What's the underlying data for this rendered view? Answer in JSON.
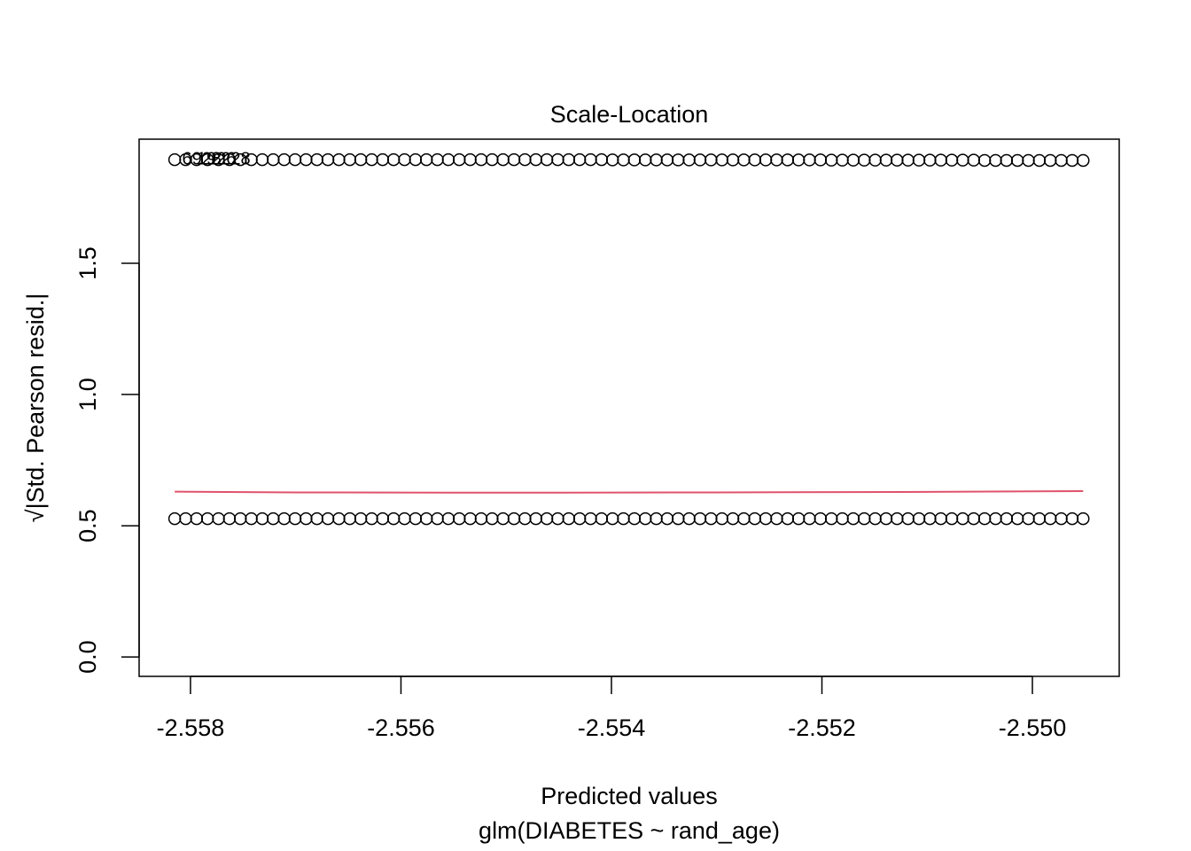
{
  "chart_data": {
    "type": "scatter",
    "title": "Scale-Location",
    "xlabel": "Predicted values",
    "subtitle": "glm(DIABETES ~ rand_age)",
    "ylabel": "√|Std. Pearson resid.|",
    "xlim": [
      -2.558488,
      -2.549175
    ],
    "ylim": [
      -0.074,
      1.973
    ],
    "xticks": [
      -2.558,
      -2.556,
      -2.554,
      -2.552,
      {
        "value": -2.55,
        "label": "-2.550"
      }
    ],
    "yticks": [
      {
        "value": 0,
        "label": "0.0"
      },
      0.5,
      {
        "value": 1,
        "label": "1.0"
      },
      1.5
    ],
    "x": [
      -2.55815,
      -2.558046,
      -2.557942,
      -2.557838,
      -2.557734,
      -2.55763,
      -2.557526,
      -2.557422,
      -2.557318,
      -2.557214,
      -2.55711,
      -2.557006,
      -2.556902,
      -2.556798,
      -2.556694,
      -2.55659,
      -2.556486,
      -2.556382,
      -2.556278,
      -2.556174,
      -2.55607,
      -2.555966,
      -2.555862,
      -2.555758,
      -2.555654,
      -2.55555,
      -2.555446,
      -2.555342,
      -2.555238,
      -2.555134,
      -2.55503,
      -2.554926,
      -2.554822,
      -2.554718,
      -2.554614,
      -2.55451,
      -2.554406,
      -2.554302,
      -2.554198,
      -2.554094,
      -2.55399,
      -2.553886,
      -2.553782,
      -2.553678,
      -2.553574,
      -2.55347,
      -2.553366,
      -2.553262,
      -2.553158,
      -2.553054,
      -2.55295,
      -2.552846,
      -2.552742,
      -2.552638,
      -2.552534,
      -2.55243,
      -2.552326,
      -2.552222,
      -2.552118,
      -2.552014,
      -2.55191,
      -2.551806,
      -2.551702,
      -2.551598,
      -2.551494,
      -2.55139,
      -2.551286,
      -2.551182,
      -2.551078,
      -2.550974,
      -2.55087,
      -2.550766,
      -2.550662,
      -2.550558,
      -2.550454,
      -2.55035,
      -2.550246,
      -2.550142,
      -2.550038,
      -2.549934,
      -2.54983,
      -2.549726,
      -2.549622,
      -2.549518
    ],
    "series": [
      {
        "color": "#000000",
        "values": [
          1.895,
          1.895,
          1.895,
          1.895,
          1.895,
          1.895,
          1.895,
          1.895,
          1.895,
          1.895,
          1.895,
          1.895,
          1.895,
          1.895,
          1.895,
          1.895,
          1.895,
          1.895,
          1.895,
          1.895,
          1.895,
          1.895,
          1.895,
          1.895,
          1.895,
          1.895,
          1.895,
          1.895,
          1.895,
          1.895,
          1.895,
          1.895,
          1.895,
          1.895,
          1.895,
          1.895,
          1.895,
          1.895,
          1.895,
          1.895,
          1.894,
          1.894,
          1.894,
          1.894,
          1.894,
          1.894,
          1.894,
          1.894,
          1.894,
          1.894,
          1.894,
          1.894,
          1.894,
          1.894,
          1.894,
          1.894,
          1.894,
          1.894,
          1.894,
          1.894,
          1.893,
          1.893,
          1.893,
          1.893,
          1.893,
          1.893,
          1.893,
          1.893,
          1.893,
          1.893,
          1.893,
          1.893,
          1.893,
          1.893,
          1.892,
          1.892,
          1.892,
          1.892,
          1.892,
          1.892,
          1.892,
          1.892,
          1.892,
          1.892
        ]
      },
      {
        "color": "#000000",
        "values": [
          0.527,
          0.527,
          0.527,
          0.527,
          0.527,
          0.527,
          0.527,
          0.527,
          0.527,
          0.527,
          0.527,
          0.527,
          0.527,
          0.527,
          0.527,
          0.527,
          0.527,
          0.527,
          0.527,
          0.527,
          0.527,
          0.527,
          0.527,
          0.527,
          0.527,
          0.527,
          0.527,
          0.527,
          0.527,
          0.527,
          0.527,
          0.527,
          0.527,
          0.527,
          0.527,
          0.527,
          0.527,
          0.527,
          0.527,
          0.527,
          0.527,
          0.527,
          0.527,
          0.527,
          0.527,
          0.527,
          0.527,
          0.527,
          0.527,
          0.527,
          0.527,
          0.527,
          0.527,
          0.527,
          0.527,
          0.527,
          0.527,
          0.527,
          0.527,
          0.527,
          0.527,
          0.527,
          0.527,
          0.527,
          0.527,
          0.527,
          0.527,
          0.527,
          0.527,
          0.527,
          0.527,
          0.527,
          0.527,
          0.527,
          0.527,
          0.527,
          0.527,
          0.527,
          0.527,
          0.527,
          0.527,
          0.527,
          0.527,
          0.527
        ]
      }
    ],
    "trend": {
      "color": "#df536b",
      "x": [
        -2.55815,
        -2.557,
        -2.555,
        -2.553,
        -2.551,
        -2.549518
      ],
      "values": [
        0.63,
        0.627,
        0.626,
        0.627,
        0.629,
        0.632
      ]
    },
    "point_labels": [
      "6928",
      "1926",
      "2228"
    ]
  }
}
